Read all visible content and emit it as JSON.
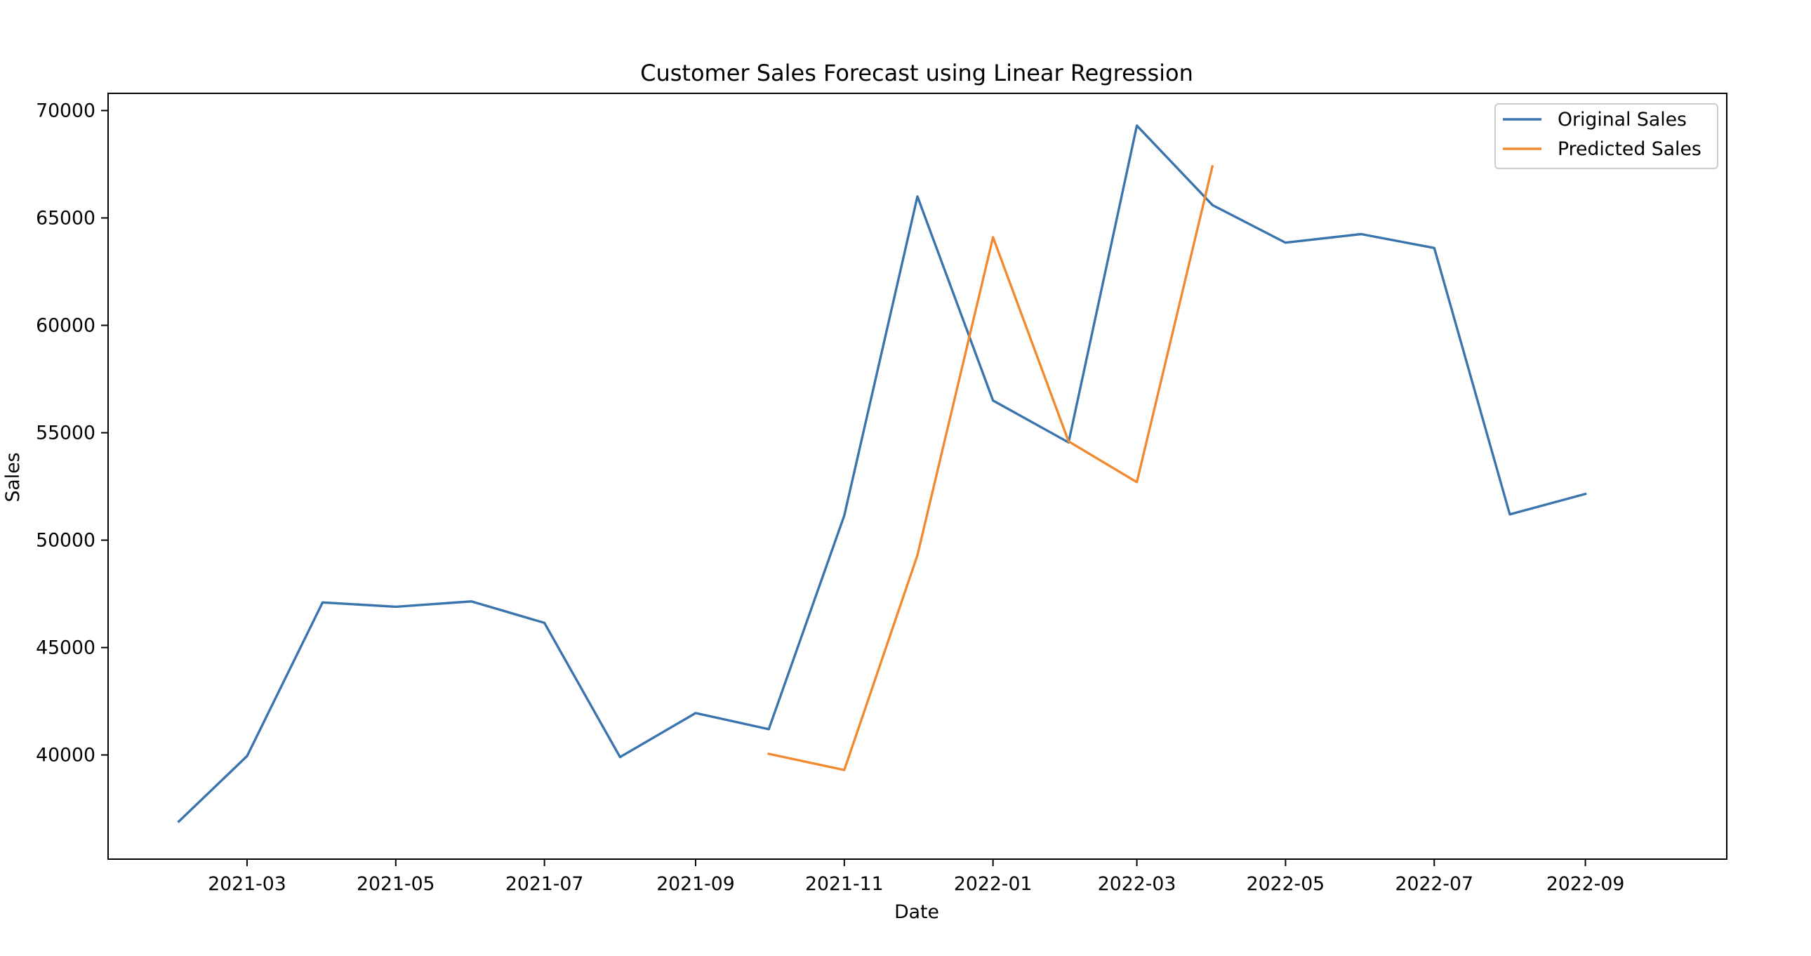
{
  "chart_data": {
    "type": "line",
    "title": "Customer Sales Forecast using Linear Regression",
    "xlabel": "Date",
    "ylabel": "Sales",
    "x_axis": "date",
    "x_ticks": [
      "2021-03",
      "2021-05",
      "2021-07",
      "2021-09",
      "2021-11",
      "2022-01",
      "2022-03",
      "2022-05",
      "2022-07",
      "2022-09"
    ],
    "y_ticks": [
      40000,
      45000,
      50000,
      55000,
      60000,
      65000,
      70000
    ],
    "xlim": [
      "2021-01-03",
      "2022-10-29"
    ],
    "ylim": [
      35150,
      70800
    ],
    "grid": false,
    "legend_position": "top-right",
    "series": [
      {
        "name": "Original Sales",
        "color": "#3a74ad",
        "points": [
          {
            "x": "2021-02-01",
            "y": 36900
          },
          {
            "x": "2021-03-01",
            "y": 39950
          },
          {
            "x": "2021-04-01",
            "y": 47100
          },
          {
            "x": "2021-05-01",
            "y": 46900
          },
          {
            "x": "2021-06-01",
            "y": 47150
          },
          {
            "x": "2021-07-01",
            "y": 46150
          },
          {
            "x": "2021-08-01",
            "y": 39900
          },
          {
            "x": "2021-09-01",
            "y": 41950
          },
          {
            "x": "2021-10-01",
            "y": 41200
          },
          {
            "x": "2021-11-01",
            "y": 51150
          },
          {
            "x": "2021-12-01",
            "y": 66000
          },
          {
            "x": "2022-01-01",
            "y": 56500
          },
          {
            "x": "2022-02-01",
            "y": 54550
          },
          {
            "x": "2022-03-01",
            "y": 69300
          },
          {
            "x": "2022-04-01",
            "y": 65600
          },
          {
            "x": "2022-05-01",
            "y": 63850
          },
          {
            "x": "2022-06-01",
            "y": 64250
          },
          {
            "x": "2022-07-01",
            "y": 63600
          },
          {
            "x": "2022-08-01",
            "y": 51200
          },
          {
            "x": "2022-09-01",
            "y": 52150
          }
        ]
      },
      {
        "name": "Predicted Sales",
        "color": "#f0892f",
        "points": [
          {
            "x": "2021-10-01",
            "y": 40050
          },
          {
            "x": "2021-11-01",
            "y": 39300
          },
          {
            "x": "2021-12-01",
            "y": 49300
          },
          {
            "x": "2022-01-01",
            "y": 64100
          },
          {
            "x": "2022-02-01",
            "y": 54600
          },
          {
            "x": "2022-03-01",
            "y": 52700
          },
          {
            "x": "2022-04-01",
            "y": 67400
          }
        ]
      }
    ]
  }
}
